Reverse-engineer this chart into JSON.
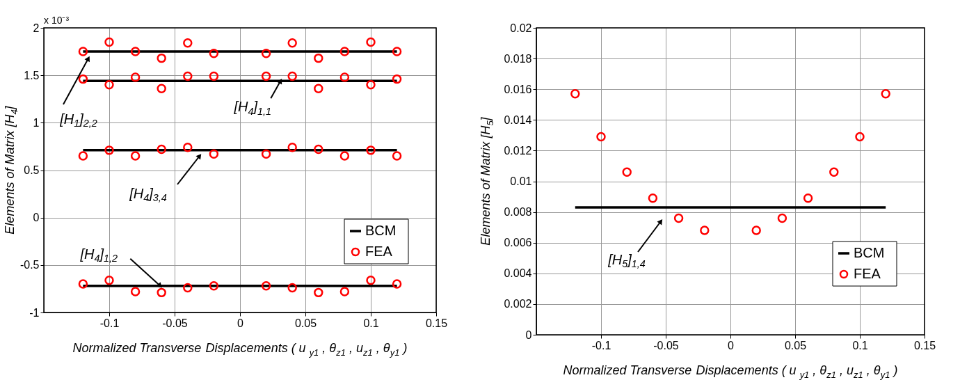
{
  "chart_data": [
    {
      "type": "line",
      "xlabel": "Normalized Transverse Displacements ( u $_{y1}$ , θ$_{z1}$ , u$_{z1}$ , θ$_{y1}$ )",
      "ylabel": "Elements of Matrix [H$_{4}$]",
      "xlim": [
        -0.15,
        0.15
      ],
      "xticks": [
        -0.1,
        -0.05,
        0,
        0.05,
        0.1,
        0.15
      ],
      "ylim": [
        -1,
        2
      ],
      "yticks": [
        -1,
        -0.5,
        0,
        0.5,
        1,
        1.5,
        2
      ],
      "grid": true,
      "legend": "bottom right",
      "series": [
        {
          "name": "BCM",
          "color": "#000000",
          "x": [
            -0.12,
            0.12
          ],
          "values": [
            1.75,
            1.75
          ]
        },
        {
          "color": "#000000",
          "x": [
            -0.12,
            0.12
          ],
          "values": [
            1.44,
            1.44
          ]
        },
        {
          "color": "#000000",
          "x": [
            -0.12,
            0.12
          ],
          "values": [
            0.71,
            0.71
          ]
        },
        {
          "color": "#000000",
          "x": [
            -0.12,
            0.12
          ],
          "values": [
            -0.72,
            -0.72
          ]
        },
        {
          "name": "FEA",
          "type": "scatter",
          "marker": "circle",
          "color": "#ff0000",
          "x": [
            -0.12,
            -0.1,
            -0.08,
            -0.06,
            -0.04,
            -0.02,
            0.02,
            0.04,
            0.06,
            0.08,
            0.1,
            0.12
          ],
          "values": [
            1.75,
            1.85,
            1.75,
            1.68,
            1.84,
            1.73,
            1.73,
            1.84,
            1.68,
            1.75,
            1.85,
            1.75
          ]
        },
        {
          "type": "scatter",
          "marker": "circle",
          "color": "#ff0000",
          "x": [
            -0.12,
            -0.1,
            -0.08,
            -0.06,
            -0.04,
            -0.02,
            0.02,
            0.04,
            0.06,
            0.08,
            0.1,
            0.12
          ],
          "values": [
            1.46,
            1.4,
            1.48,
            1.36,
            1.49,
            1.49,
            1.49,
            1.49,
            1.36,
            1.48,
            1.4,
            1.46
          ]
        },
        {
          "type": "scatter",
          "marker": "circle",
          "color": "#ff0000",
          "x": [
            -0.12,
            -0.1,
            -0.08,
            -0.06,
            -0.04,
            -0.02,
            0.02,
            0.04,
            0.06,
            0.08,
            0.1,
            0.12
          ],
          "values": [
            0.65,
            0.71,
            0.65,
            0.72,
            0.74,
            0.67,
            0.67,
            0.74,
            0.72,
            0.65,
            0.71,
            0.65
          ]
        },
        {
          "type": "scatter",
          "marker": "circle",
          "color": "#ff0000",
          "x": [
            -0.12,
            -0.1,
            -0.08,
            -0.06,
            -0.04,
            -0.02,
            0.02,
            0.04,
            0.06,
            0.08,
            0.1,
            0.12
          ],
          "values": [
            -0.7,
            -0.66,
            -0.78,
            -0.79,
            -0.74,
            -0.72,
            -0.72,
            -0.74,
            -0.79,
            -0.78,
            -0.66,
            -0.7
          ]
        }
      ],
      "annotations": [
        "x 10⁻³",
        "[H$_{1}$]$_{2,2}$",
        {
          "text": "[H$_{4}$]$_{1,1}$",
          "x": 0.031,
          "y": 1.44
        },
        "[H$_{4}$]$_{3,4}$",
        {
          "text": "[H$_{4}$]$_{1,2}$",
          "x": -0.061,
          "y": -0.72
        }
      ]
    },
    {
      "type": "line",
      "xlabel": "Normalized Transverse Displacements ( u $_{y1}$ , θ$_{z1}$ , u$_{z1}$ , θ$_{y1}$ )",
      "ylabel": "Elements of Matrix [H$_{5}$]",
      "xlim": [
        -0.15,
        0.15
      ],
      "xticks": [
        -0.1,
        -0.05,
        0,
        0.05,
        0.1,
        0.15
      ],
      "ylim": [
        0,
        0.02
      ],
      "yticks": [
        0,
        0.002,
        0.004,
        0.006,
        0.008,
        0.01,
        0.012,
        0.014,
        0.016,
        0.018,
        0.02
      ],
      "grid": true,
      "legend": "bottom right",
      "series": [
        {
          "name": "BCM",
          "color": "#000000",
          "x": [
            -0.12,
            0.12
          ],
          "values": [
            0.0083,
            0.0083
          ]
        },
        {
          "name": "FEA",
          "type": "scatter",
          "marker": "circle",
          "color": "#ff0000",
          "x": [
            -0.12,
            -0.1,
            -0.08,
            -0.06,
            -0.04,
            -0.02,
            0.02,
            0.04,
            0.06,
            0.08,
            0.1,
            0.12
          ],
          "values": [
            0.0157,
            0.0129,
            0.0106,
            0.0089,
            0.0076,
            0.0068,
            0.0068,
            0.0076,
            0.0089,
            0.0106,
            0.0129,
            0.0157
          ]
        }
      ],
      "annotations": [
        "[H$_{5}$]$_{1,4}$"
      ]
    }
  ]
}
